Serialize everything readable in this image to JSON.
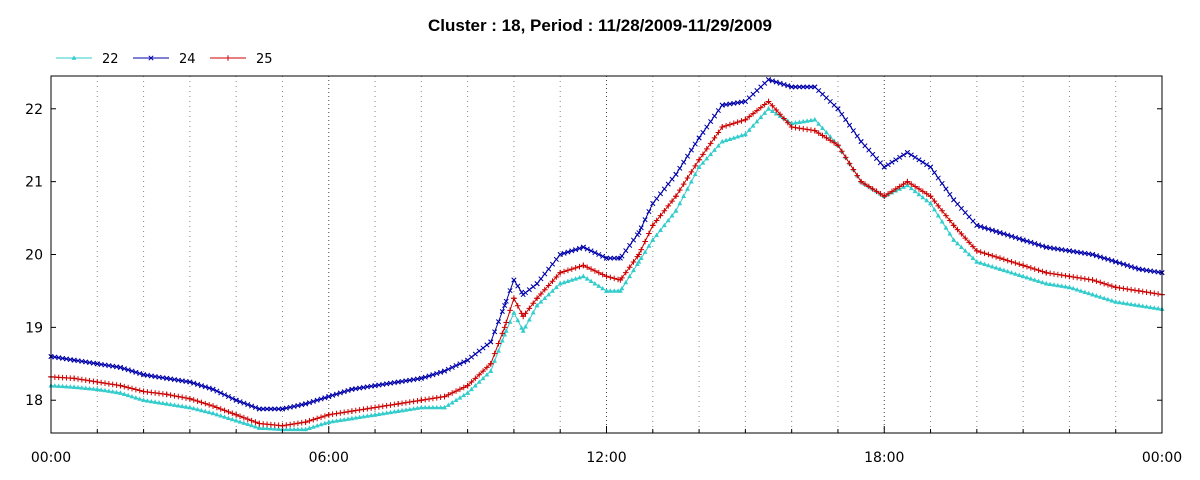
{
  "chart_data": {
    "type": "line",
    "title": "Cluster : 18, Period : 11/28/2009-11/29/2009",
    "xlabel": "",
    "ylabel": "",
    "x_tick_labels": [
      "00:00",
      "06:00",
      "12:00",
      "18:00",
      "00:00"
    ],
    "x_ticks_hours": [
      0,
      6,
      12,
      18,
      24
    ],
    "xlim_hours": [
      0,
      24
    ],
    "y_ticks": [
      18,
      19,
      20,
      21,
      22
    ],
    "ylim": [
      17.55,
      22.45
    ],
    "grid": "dotted vertical",
    "legend_position": "top-left",
    "series": [
      {
        "name": "22",
        "color": "#33cccc",
        "marker": "triangle",
        "x": [
          0,
          0.5,
          1,
          1.5,
          2,
          2.5,
          3,
          3.5,
          4,
          4.5,
          5,
          5.5,
          6,
          6.5,
          7,
          7.5,
          8,
          8.5,
          9,
          9.5,
          9.8,
          10,
          10.2,
          10.5,
          11,
          11.5,
          12,
          12.3,
          12.7,
          13,
          13.5,
          14,
          14.5,
          15,
          15.5,
          16,
          16.5,
          17,
          17.5,
          18,
          18.5,
          19,
          19.5,
          20,
          20.5,
          21,
          21.5,
          22,
          22.5,
          23,
          23.5,
          24
        ],
        "y": [
          18.2,
          18.18,
          18.15,
          18.1,
          18.0,
          17.95,
          17.9,
          17.82,
          17.72,
          17.62,
          17.6,
          17.6,
          17.7,
          17.75,
          17.8,
          17.85,
          17.9,
          17.9,
          18.1,
          18.4,
          18.9,
          19.2,
          18.95,
          19.3,
          19.6,
          19.7,
          19.5,
          19.5,
          19.9,
          20.2,
          20.6,
          21.2,
          21.55,
          21.65,
          22.0,
          21.8,
          21.85,
          21.5,
          21.0,
          20.8,
          20.95,
          20.7,
          20.2,
          19.9,
          19.8,
          19.7,
          19.6,
          19.55,
          19.45,
          19.35,
          19.3,
          19.25
        ]
      },
      {
        "name": "24",
        "color": "#0000aa",
        "marker": "x",
        "x": [
          0,
          0.5,
          1,
          1.5,
          2,
          2.5,
          3,
          3.5,
          4,
          4.5,
          5,
          5.5,
          6,
          6.5,
          7,
          7.5,
          8,
          8.5,
          9,
          9.5,
          9.8,
          10,
          10.2,
          10.5,
          11,
          11.5,
          12,
          12.3,
          12.7,
          13,
          13.5,
          14,
          14.5,
          15,
          15.5,
          16,
          16.5,
          17,
          17.5,
          18,
          18.5,
          19,
          19.5,
          20,
          20.5,
          21,
          21.5,
          22,
          22.5,
          23,
          23.5,
          24
        ],
        "y": [
          18.6,
          18.55,
          18.5,
          18.45,
          18.35,
          18.3,
          18.25,
          18.15,
          18.0,
          17.88,
          17.88,
          17.95,
          18.05,
          18.15,
          18.2,
          18.25,
          18.3,
          18.4,
          18.55,
          18.8,
          19.3,
          19.65,
          19.45,
          19.6,
          20.0,
          20.1,
          19.95,
          19.95,
          20.3,
          20.7,
          21.1,
          21.6,
          22.05,
          22.1,
          22.4,
          22.3,
          22.3,
          22.0,
          21.55,
          21.2,
          21.4,
          21.2,
          20.75,
          20.4,
          20.3,
          20.2,
          20.1,
          20.05,
          20.0,
          19.9,
          19.8,
          19.75
        ]
      },
      {
        "name": "25",
        "color": "#cc0000",
        "marker": "plus",
        "x": [
          0,
          0.5,
          1,
          1.5,
          2,
          2.5,
          3,
          3.5,
          4,
          4.5,
          5,
          5.5,
          6,
          6.5,
          7,
          7.5,
          8,
          8.5,
          9,
          9.5,
          9.8,
          10,
          10.2,
          10.5,
          11,
          11.5,
          12,
          12.3,
          12.7,
          13,
          13.5,
          14,
          14.5,
          15,
          15.5,
          16,
          16.5,
          17,
          17.5,
          18,
          18.5,
          19,
          19.5,
          20,
          20.5,
          21,
          21.5,
          22,
          22.5,
          23,
          23.5,
          24
        ],
        "y": [
          18.32,
          18.3,
          18.25,
          18.2,
          18.12,
          18.08,
          18.02,
          17.92,
          17.8,
          17.68,
          17.65,
          17.7,
          17.8,
          17.85,
          17.9,
          17.95,
          18.0,
          18.05,
          18.2,
          18.5,
          19.0,
          19.4,
          19.15,
          19.4,
          19.75,
          19.85,
          19.7,
          19.65,
          20.0,
          20.4,
          20.8,
          21.3,
          21.75,
          21.85,
          22.1,
          21.75,
          21.7,
          21.5,
          21.0,
          20.8,
          21.0,
          20.8,
          20.4,
          20.05,
          19.95,
          19.85,
          19.75,
          19.7,
          19.65,
          19.55,
          19.5,
          19.45
        ]
      }
    ]
  }
}
